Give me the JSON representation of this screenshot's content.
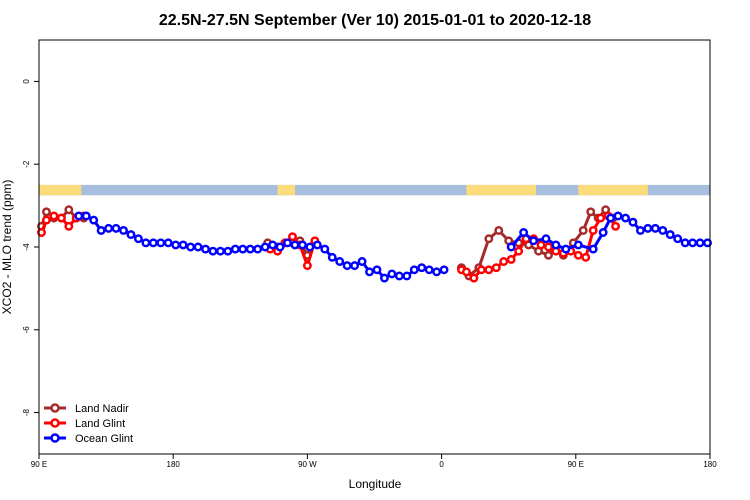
{
  "chart_data": {
    "type": "line",
    "title": "22.5N-27.5N September (Ver 10)   2015-01-01 to 2020-12-18",
    "xlabel": "Longitude",
    "ylabel": "XCO2 - MLO trend (ppm)",
    "xlim": [
      -90,
      180
    ],
    "ylim": [
      -9,
      1
    ],
    "xticks": [
      {
        "value": -90,
        "label": "90 E"
      },
      {
        "value": -36,
        "label": "180"
      },
      {
        "value": 18,
        "label": "90 W"
      },
      {
        "value": 72,
        "label": "0"
      },
      {
        "value": 126,
        "label": "90 E"
      },
      {
        "value": 180,
        "label": "180"
      }
    ],
    "yticks": [
      {
        "value": 0,
        "label": "0"
      },
      {
        "value": -2,
        "label": "-2"
      },
      {
        "value": -4,
        "label": "-4"
      },
      {
        "value": -6,
        "label": "-6"
      },
      {
        "value": -8,
        "label": "-8"
      }
    ],
    "grid": false,
    "legend_position": "bottom-left",
    "land_mask_strip": {
      "y_range": [
        -2.75,
        -2.5
      ],
      "ocean_color": "#a7bede",
      "land_color": "#fcdb7a",
      "land_x_ranges": [
        [
          -90,
          -73
        ],
        [
          6,
          13
        ],
        [
          82,
          110
        ],
        [
          127,
          155
        ]
      ]
    },
    "series": [
      {
        "name": "Land Nadir",
        "color": "#a52a2a",
        "x": [
          -89,
          -87,
          -84,
          -81,
          -78,
          -75,
          -72,
          2,
          6,
          9,
          12,
          15,
          18,
          21,
          80,
          83,
          87,
          91,
          95,
          99,
          103,
          107,
          111,
          115,
          118,
          121,
          125,
          129,
          132,
          135,
          138,
          141
        ],
        "y": [
          -3.5,
          -3.15,
          -3.3,
          -3.3,
          -3.1,
          -3.3,
          -3.3,
          -3.9,
          -4.0,
          -3.9,
          -3.9,
          -3.85,
          -4.2,
          -3.9,
          -4.5,
          -4.7,
          -4.5,
          -3.8,
          -3.6,
          -3.85,
          -3.9,
          -3.95,
          -4.1,
          -4.2,
          -4.0,
          -4.2,
          -3.9,
          -3.6,
          -3.15,
          -3.3,
          -3.1,
          -3.3
        ]
      },
      {
        "name": "Land Glint",
        "color": "#ff0000",
        "x": [
          -89,
          -87,
          -84,
          -81,
          -78,
          -75,
          -72,
          3,
          6,
          9,
          12,
          15,
          18,
          21,
          80,
          82,
          85,
          88,
          91,
          94,
          97,
          100,
          103,
          106,
          109,
          112,
          115,
          118,
          121,
          124,
          127,
          130,
          133,
          136,
          139,
          142
        ],
        "y": [
          -3.65,
          -3.35,
          -3.25,
          -3.3,
          -3.5,
          -3.3,
          -3.25,
          -4.05,
          -4.1,
          -3.9,
          -3.75,
          -3.95,
          -4.45,
          -3.85,
          -4.55,
          -4.6,
          -4.75,
          -4.55,
          -4.55,
          -4.5,
          -4.35,
          -4.3,
          -4.1,
          -3.8,
          -3.8,
          -3.95,
          -4.0,
          -4.1,
          -4.15,
          -4.1,
          -4.2,
          -4.25,
          -3.6,
          -3.3,
          -3.25,
          -3.5
        ]
      },
      {
        "name": "Ocean Glint",
        "color": "#0000ff",
        "x": [
          -74,
          -71,
          -68,
          -65,
          -62,
          -59,
          -56,
          -53,
          -50,
          -47,
          -44,
          -41,
          -38,
          -35,
          -32,
          -29,
          -26,
          -23,
          -20,
          -17,
          -14,
          -11,
          -8,
          -5,
          -2,
          1,
          4,
          7,
          10,
          13,
          16,
          19,
          22,
          25,
          28,
          31,
          34,
          37,
          40,
          43,
          46,
          49,
          52,
          55,
          58,
          61,
          64,
          67,
          70,
          73,
          100,
          105,
          109,
          114,
          118,
          122,
          127,
          133,
          137,
          140,
          143,
          146,
          149,
          152,
          155,
          158,
          161,
          164,
          167,
          170,
          173,
          176,
          179
        ],
        "y": [
          -3.25,
          -3.25,
          -3.35,
          -3.6,
          -3.55,
          -3.55,
          -3.6,
          -3.7,
          -3.8,
          -3.9,
          -3.9,
          -3.9,
          -3.9,
          -3.95,
          -3.95,
          -4.0,
          -4.0,
          -4.05,
          -4.1,
          -4.1,
          -4.1,
          -4.05,
          -4.05,
          -4.05,
          -4.05,
          -4.0,
          -3.95,
          -4.0,
          -3.9,
          -3.95,
          -3.95,
          -4.0,
          -3.95,
          -4.05,
          -4.25,
          -4.35,
          -4.45,
          -4.45,
          -4.35,
          -4.6,
          -4.55,
          -4.75,
          -4.65,
          -4.7,
          -4.7,
          -4.55,
          -4.5,
          -4.55,
          -4.6,
          -4.55,
          -4.0,
          -3.65,
          -3.85,
          -3.8,
          -3.95,
          -4.05,
          -3.95,
          -4.05,
          -3.65,
          -3.3,
          -3.25,
          -3.3,
          -3.4,
          -3.6,
          -3.55,
          -3.55,
          -3.6,
          -3.7,
          -3.8,
          -3.9,
          -3.9,
          -3.9,
          -3.9
        ]
      }
    ]
  }
}
